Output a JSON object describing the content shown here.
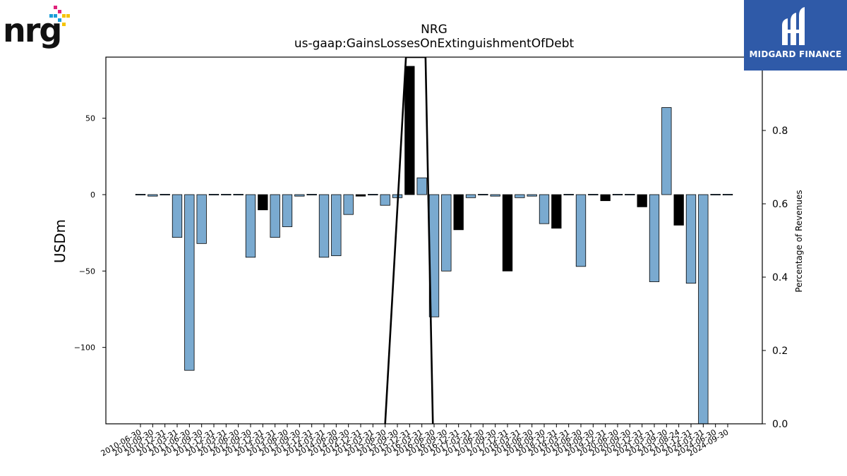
{
  "title": "NRG",
  "subtitle": "us-gaap:GainsLossesOnExtinguishmentOfDebt",
  "logos": {
    "left": {
      "text": "nrg",
      "mark": "registered"
    },
    "right": {
      "text": "MIDGARD FINANCE"
    }
  },
  "colors": {
    "bar_default": "#7aaad0",
    "bar_highlight": "#000000",
    "midgard_bg": "#2f5aa8"
  },
  "chart_data": {
    "type": "bar",
    "title": "NRG",
    "subtitle": "us-gaap:GainsLossesOnExtinguishmentOfDebt",
    "ylabel": "USDm",
    "y2label": "Percentage of Revenues",
    "ylim": [
      -150,
      90
    ],
    "y2lim": [
      0,
      1.0
    ],
    "yticks": [
      50,
      0,
      -50,
      -100
    ],
    "ytick_labels": [
      "50",
      "0",
      "−50",
      "−100"
    ],
    "y2ticks": [
      0.0,
      0.2,
      0.4,
      0.6,
      0.8
    ],
    "y2tick_labels": [
      "0.0",
      "0.2",
      "0.4",
      "0.6",
      "0.8"
    ],
    "categories": [
      "2010-06-30",
      "2010-09-30",
      "2010-12-31",
      "2011-03-31",
      "2011-06-30",
      "2011-09-30",
      "2011-12-31",
      "2012-03-31",
      "2012-06-30",
      "2012-09-30",
      "2012-12-31",
      "2013-03-31",
      "2013-06-30",
      "2013-09-30",
      "2013-12-31",
      "2014-03-31",
      "2014-06-30",
      "2014-09-30",
      "2014-12-31",
      "2015-03-31",
      "2015-06-30",
      "2015-09-30",
      "2015-12-31",
      "2016-03-31",
      "2016-06-30",
      "2016-09-30",
      "2016-12-31",
      "2017-03-31",
      "2017-06-30",
      "2017-09-30",
      "2017-12-31",
      "2018-03-31",
      "2018-06-30",
      "2018-09-30",
      "2018-12-31",
      "2019-03-31",
      "2019-06-30",
      "2019-09-30",
      "2019-12-31",
      "2020-06-30",
      "2020-09-30",
      "2020-12-31",
      "2021-03-31",
      "2021-09-30",
      "2021-08-24",
      "2021-12-31",
      "2024-03-31",
      "2024-06-30",
      "2024-09-30"
    ],
    "values": [
      0,
      -1,
      0,
      -28,
      -115,
      -32,
      0,
      0,
      0,
      -41,
      -10,
      -28,
      -21,
      -1,
      0,
      -41,
      -40,
      -13,
      -1,
      0,
      -7,
      -2,
      84,
      11,
      -80,
      -50,
      -23,
      -2,
      0,
      -1,
      -50,
      -2,
      -1,
      -19,
      -22,
      0,
      -47,
      0,
      -4,
      0,
      0,
      -8,
      -57,
      57,
      -20,
      -58,
      -150,
      0,
      0
    ],
    "highlight": [
      false,
      false,
      false,
      false,
      false,
      false,
      false,
      false,
      false,
      false,
      true,
      false,
      false,
      false,
      false,
      false,
      false,
      false,
      true,
      false,
      false,
      false,
      true,
      false,
      false,
      false,
      true,
      false,
      false,
      false,
      true,
      false,
      false,
      false,
      true,
      false,
      false,
      false,
      true,
      false,
      false,
      true,
      false,
      false,
      true,
      false,
      false,
      false,
      false
    ],
    "overlay_line": {
      "y2_axis": true,
      "points": [
        [
          20,
          0.0
        ],
        [
          21.7,
          1.0
        ],
        [
          23.3,
          1.0
        ],
        [
          23.9,
          0.0
        ]
      ]
    },
    "grid": false,
    "legend": "none"
  }
}
